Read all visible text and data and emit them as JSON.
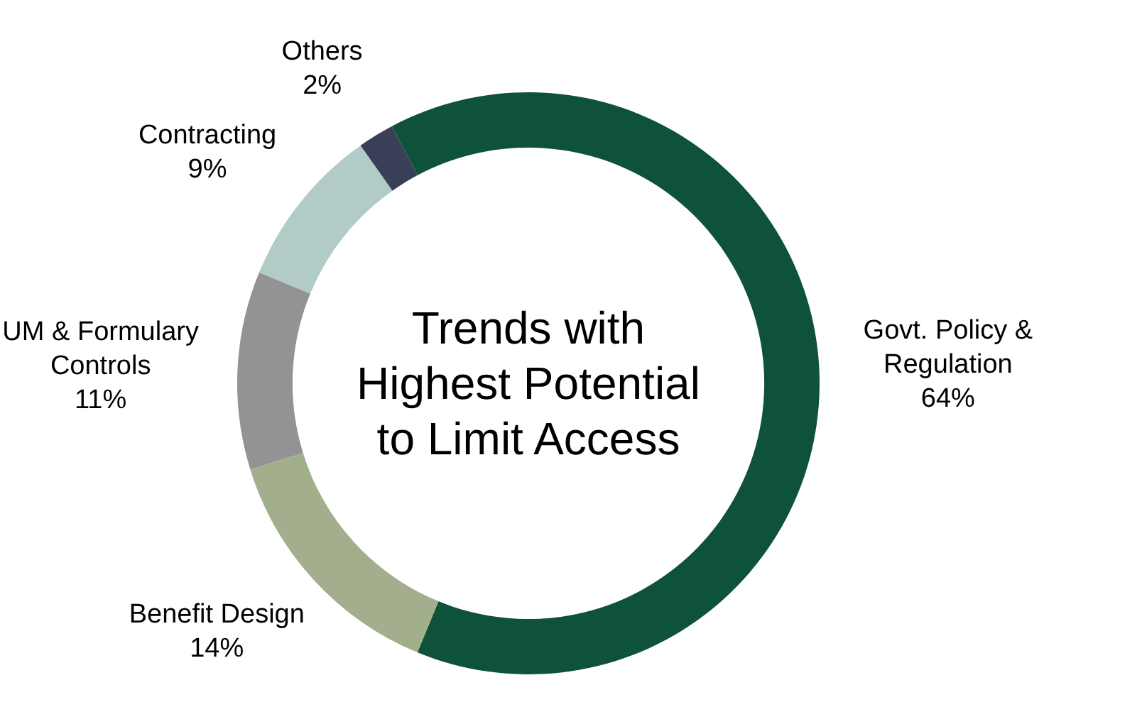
{
  "chart_data": {
    "type": "donut",
    "title": "Trends with Highest Potential to Limit Access",
    "categories": [
      "Govt. Policy & Regulation",
      "Benefit Design",
      "UM & Formulary Controls",
      "Contracting",
      "Others"
    ],
    "values": [
      64,
      14,
      11,
      9,
      2
    ],
    "value_labels": [
      "64%",
      "14%",
      "11%",
      "9%",
      "2%"
    ],
    "colors": [
      "#0f523a",
      "#a3af8c",
      "#939393",
      "#b1cbc6",
      "#393f57"
    ],
    "legend": false
  }
}
